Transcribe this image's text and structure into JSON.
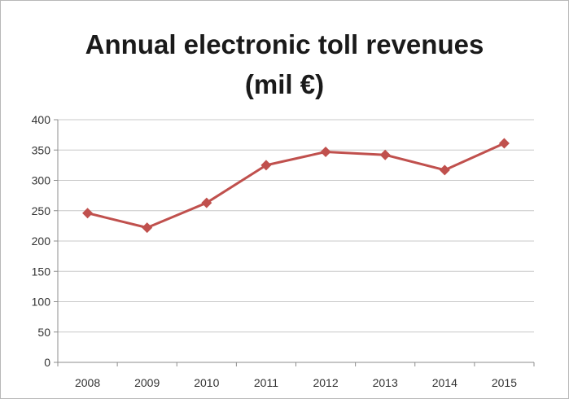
{
  "title_line1": "Annual electronic toll revenues",
  "title_line2": "(mil €)",
  "chart_data": {
    "type": "line",
    "title": "Annual electronic toll revenues (mil €)",
    "xlabel": "",
    "ylabel": "",
    "categories": [
      "2008",
      "2009",
      "2010",
      "2011",
      "2012",
      "2013",
      "2014",
      "2015"
    ],
    "series": [
      {
        "values": [
          246,
          222,
          263,
          325,
          347,
          342,
          317,
          361
        ]
      }
    ],
    "ylim": [
      0,
      400
    ],
    "yticks": [
      0,
      50,
      100,
      150,
      200,
      250,
      300,
      350,
      400
    ],
    "grid": true,
    "legend": "none",
    "line_color": "#c0504d",
    "grid_color": "#c8c8c8"
  }
}
